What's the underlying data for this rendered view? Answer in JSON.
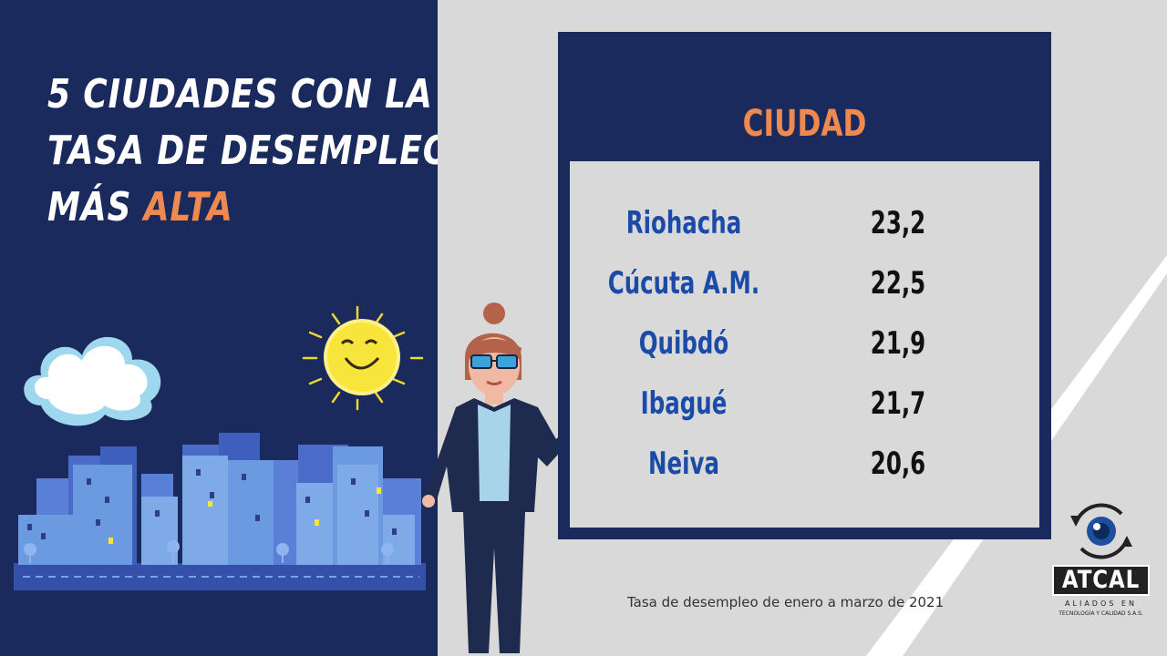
{
  "title": {
    "line1": "5 CIUDADES CON LA",
    "line2": "TASA DE DESEMPLEO",
    "line3_prefix": "MÁS ",
    "line3_accent": "ALTA"
  },
  "board": {
    "header": "CIUDAD",
    "rows": [
      {
        "city": "Riohacha",
        "rate": "23,2"
      },
      {
        "city": "Cúcuta A.M.",
        "rate": "22,5"
      },
      {
        "city": "Quibdó",
        "rate": "21,9"
      },
      {
        "city": "Ibagué",
        "rate": "21,7"
      },
      {
        "city": "Neiva",
        "rate": "20,6"
      }
    ]
  },
  "caption": "Tasa de desempleo de enero a marzo de 2021",
  "logo": {
    "name": "ATCAL",
    "line1": "ALIADOS EN",
    "line2": "TECNOLOGÍA Y CALIDAD S.A.S."
  },
  "colors": {
    "navy": "#1b2a5c",
    "accent_orange": "#f0894f",
    "city_blue": "#1b4ba8",
    "light_gray": "#d9d9d9"
  }
}
